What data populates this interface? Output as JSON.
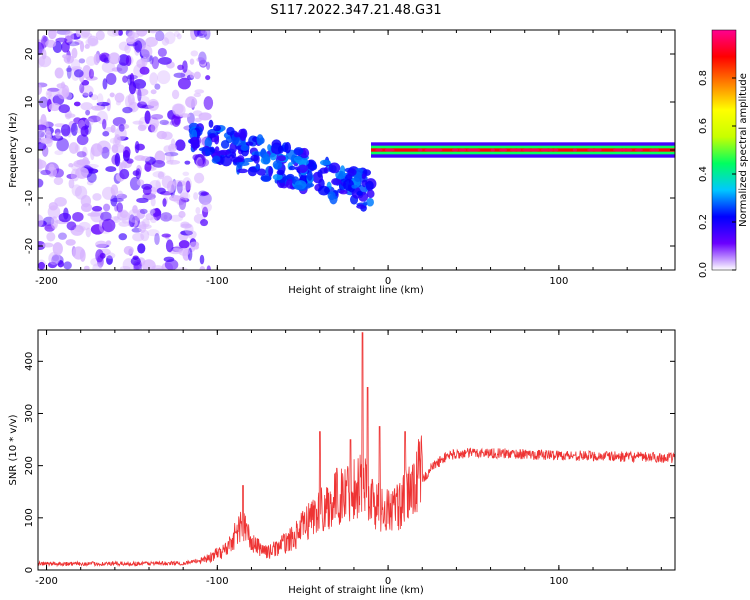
{
  "figure": {
    "title": "S117.2022.347.21.48.G31"
  },
  "chart_data": [
    {
      "type": "heatmap",
      "xlabel": "Height of straight line (km)",
      "ylabel": "Frequency (Hz)",
      "xlim": [
        -205,
        168
      ],
      "ylim": [
        -25,
        25
      ],
      "x_ticks": [
        -200,
        -100,
        0,
        100
      ],
      "y_ticks": [
        -20,
        -10,
        0,
        10,
        20
      ],
      "colorbar": {
        "label": "Normalized spectral amplitude",
        "range": [
          0,
          1
        ],
        "ticks": [
          "0.0",
          "0.2",
          "0.4",
          "0.6",
          "0.8"
        ],
        "colormap": [
          "#ffffff",
          "#6a00ff",
          "#0000ff",
          "#00c8ff",
          "#00ff60",
          "#c8ff00",
          "#ffff00",
          "#ff8000",
          "#ff0000",
          "#ff0090"
        ]
      },
      "features": [
        {
          "region": "x -205..-115 km",
          "description": "scattered low-amplitude noise over all frequencies",
          "amplitude": 0.1
        },
        {
          "region": "x -115..-10 km",
          "description": "discrete blobs with frequency decreasing from about 3 Hz to -10 Hz",
          "amplitude": 0.35
        },
        {
          "region": "x -10..168 km",
          "description": "narrow band centred at 0 Hz",
          "amplitude": 0.9
        }
      ]
    },
    {
      "type": "line",
      "xlabel": "Height of straight line (km)",
      "ylabel": "SNR (10 * v/v)",
      "xlim": [
        -205,
        168
      ],
      "ylim": [
        0,
        460
      ],
      "x_ticks": [
        -200,
        -100,
        0,
        100
      ],
      "y_ticks": [
        0,
        100,
        200,
        300,
        400
      ],
      "series": [
        {
          "color": "#ee3333",
          "envelope": [
            {
              "x": -205,
              "y": 12
            },
            {
              "x": -160,
              "y": 12
            },
            {
              "x": -120,
              "y": 13
            },
            {
              "x": -105,
              "y": 20
            },
            {
              "x": -95,
              "y": 35
            },
            {
              "x": -85,
              "y": 80
            },
            {
              "x": -80,
              "y": 45
            },
            {
              "x": -70,
              "y": 30
            },
            {
              "x": -55,
              "y": 55
            },
            {
              "x": -45,
              "y": 90
            },
            {
              "x": -35,
              "y": 110
            },
            {
              "x": -25,
              "y": 130
            },
            {
              "x": -15,
              "y": 150
            },
            {
              "x": -8,
              "y": 110
            },
            {
              "x": 0,
              "y": 100
            },
            {
              "x": 8,
              "y": 110
            },
            {
              "x": 15,
              "y": 145
            },
            {
              "x": 25,
              "y": 195
            },
            {
              "x": 35,
              "y": 220
            },
            {
              "x": 50,
              "y": 225
            },
            {
              "x": 100,
              "y": 220
            },
            {
              "x": 168,
              "y": 215
            }
          ],
          "peaks": [
            {
              "x": -85,
              "y": 162
            },
            {
              "x": -40,
              "y": 265
            },
            {
              "x": -30,
              "y": 195
            },
            {
              "x": -22,
              "y": 250
            },
            {
              "x": -15,
              "y": 455
            },
            {
              "x": -12,
              "y": 350
            },
            {
              "x": -5,
              "y": 275
            },
            {
              "x": 10,
              "y": 265
            }
          ]
        }
      ]
    }
  ]
}
